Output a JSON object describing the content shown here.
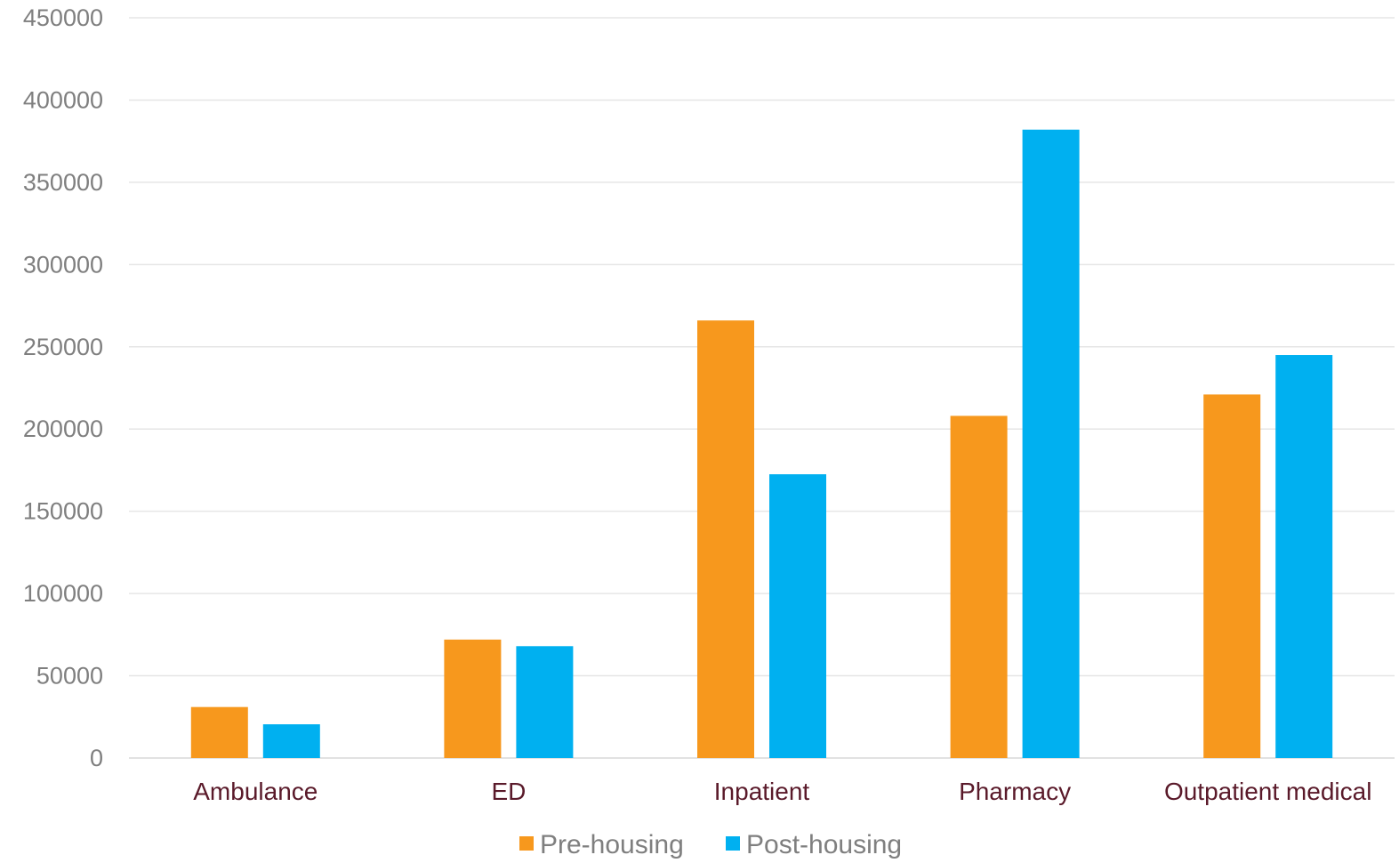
{
  "chart_data": {
    "type": "bar",
    "categories": [
      "Ambulance",
      "ED",
      "Inpatient",
      "Pharmacy",
      "Outpatient medical"
    ],
    "series": [
      {
        "name": "Pre-housing",
        "color": "#f7981d",
        "values": [
          31000,
          72000,
          266000,
          208000,
          221000
        ]
      },
      {
        "name": "Post-housing",
        "color": "#00b0f0",
        "values": [
          20500,
          68000,
          172500,
          382000,
          245000
        ]
      }
    ],
    "yticks": [
      "0",
      "50000",
      "100000",
      "150000",
      "200000",
      "250000",
      "300000",
      "350000",
      "400000",
      "450000"
    ],
    "ylim": [
      0,
      450000
    ],
    "grid": true,
    "legend_position": "bottom",
    "title": "",
    "xlabel": "",
    "ylabel": ""
  }
}
